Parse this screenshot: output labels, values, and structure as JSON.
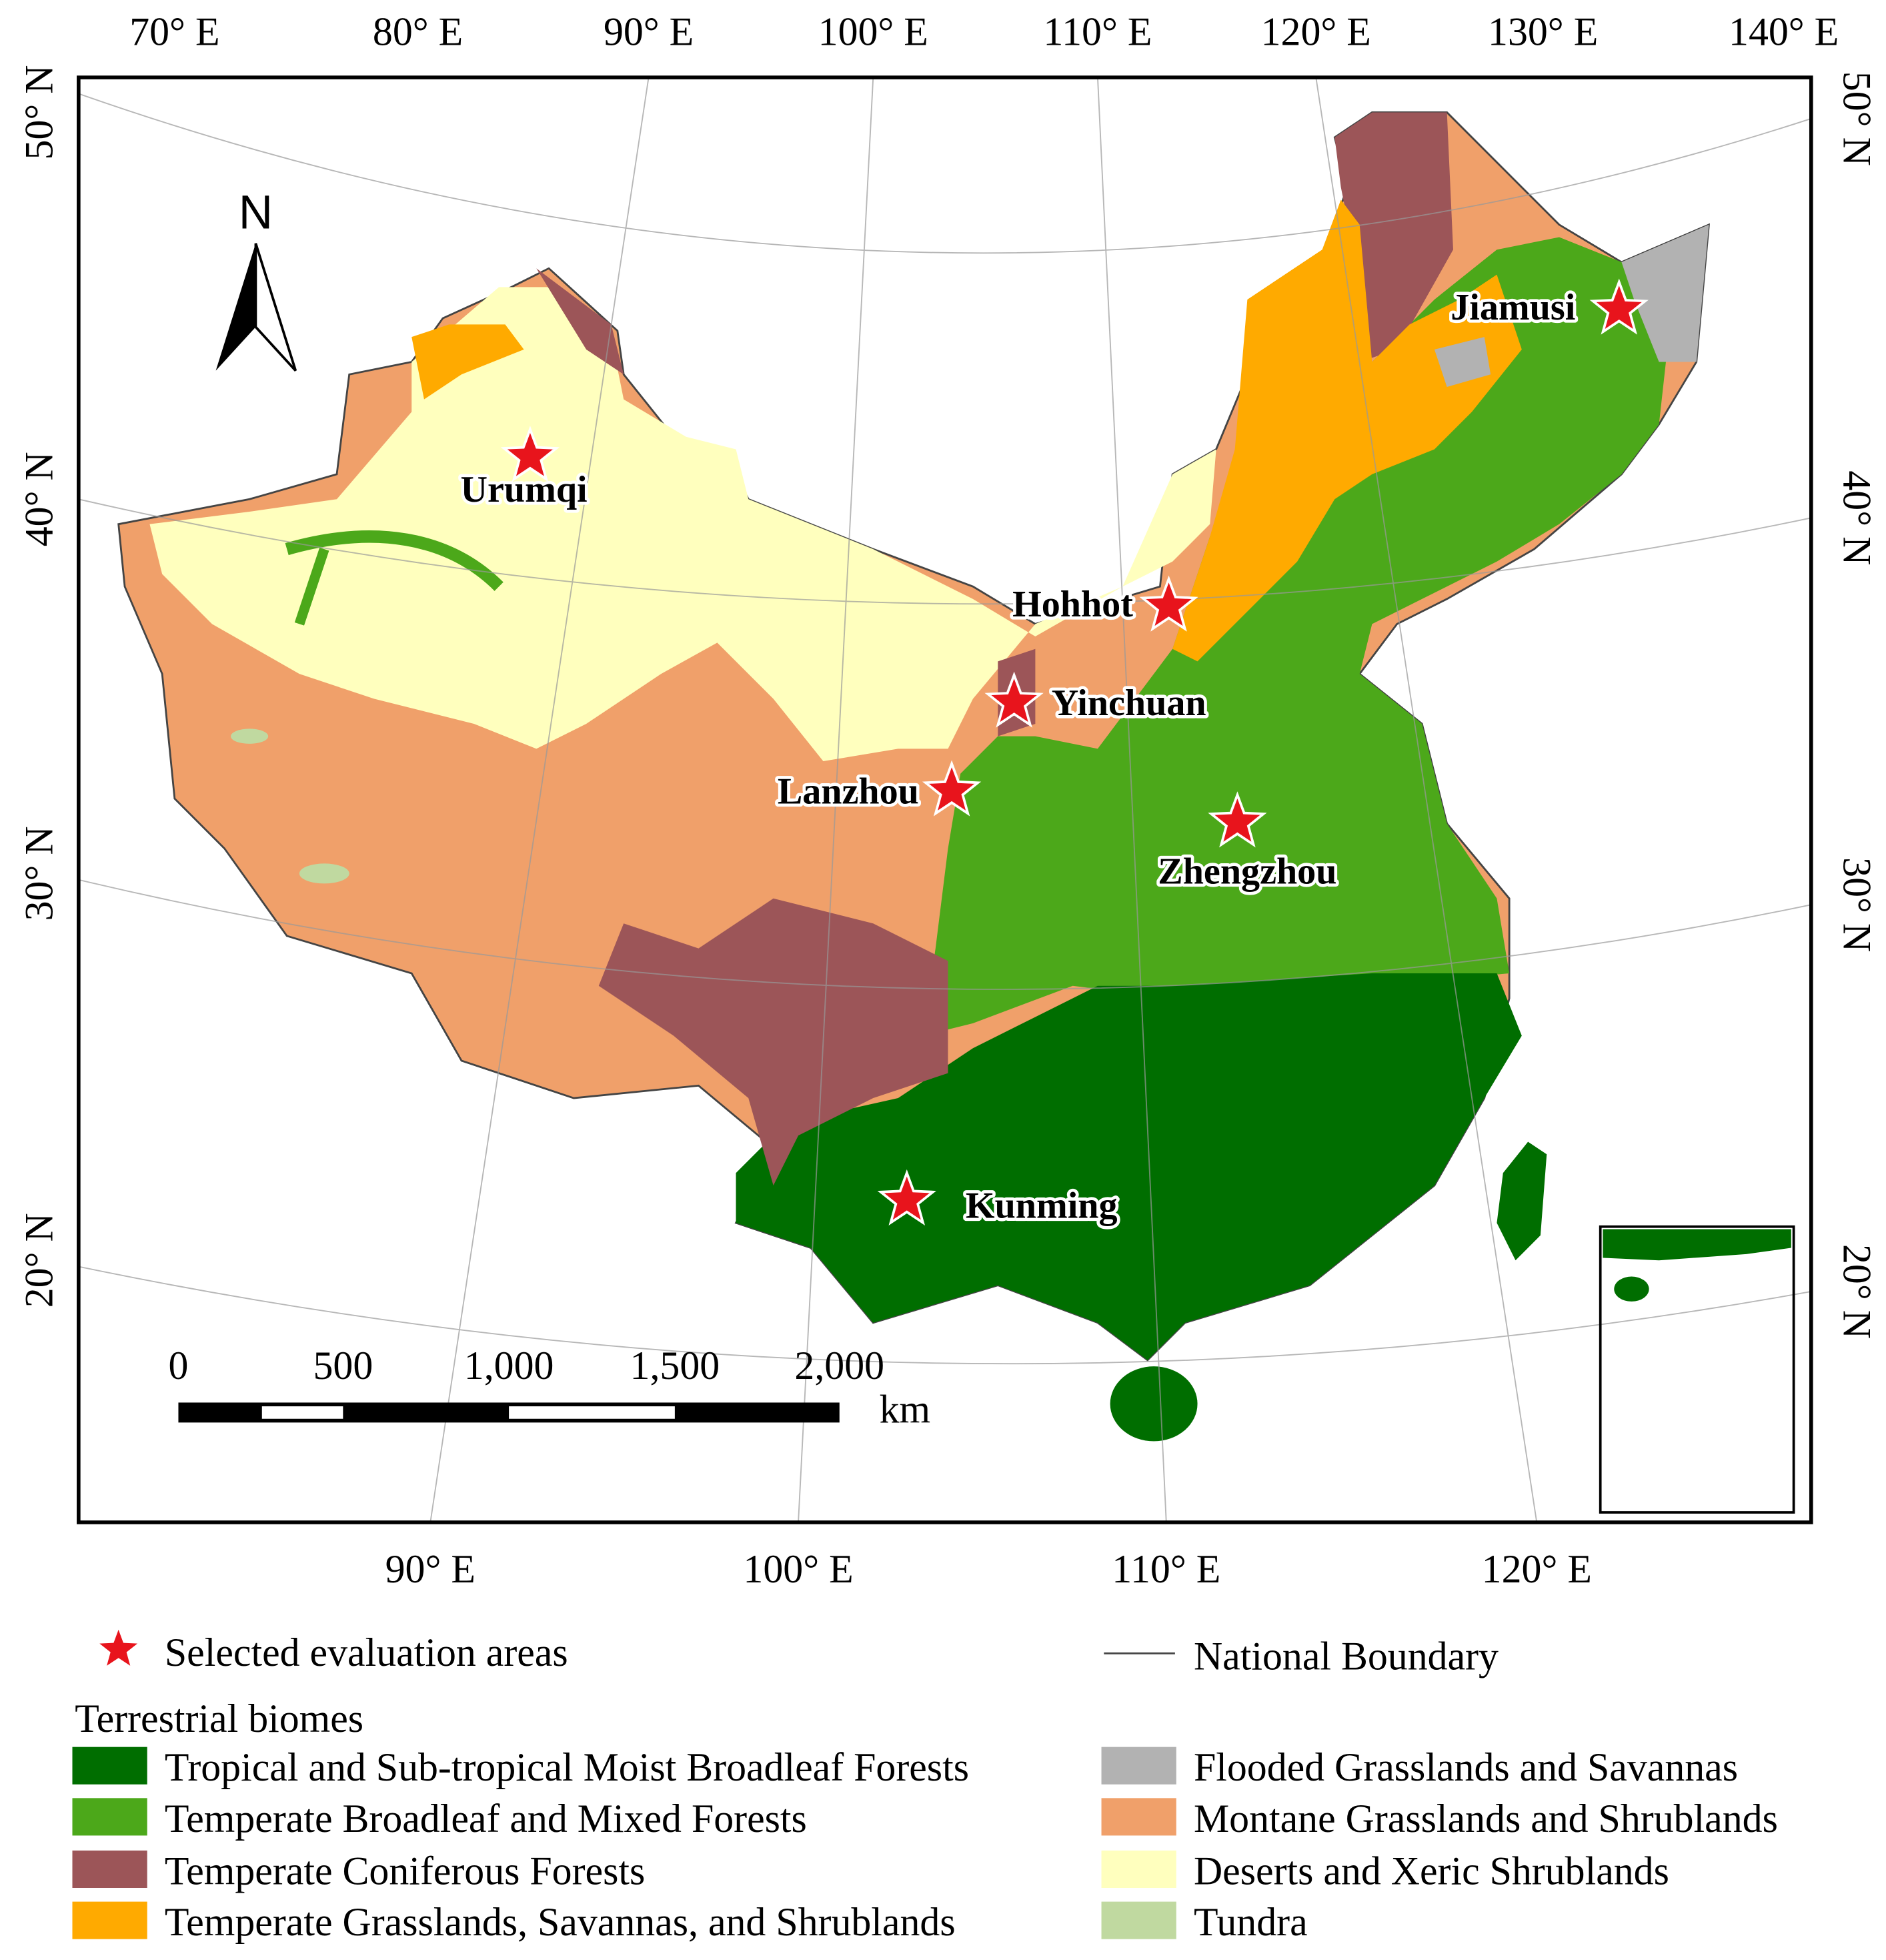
{
  "map": {
    "top_labels": [
      "70° E",
      "80° E",
      "90° E",
      "100° E",
      "110° E",
      "120° E",
      "130° E",
      "140° E"
    ],
    "left_labels": [
      "50° N",
      "40° N",
      "30° N",
      "20° N"
    ],
    "right_labels": [
      "50° N",
      "40° N",
      "30° N",
      "20° N"
    ],
    "bottom_labels": [
      "90° E",
      "100° E",
      "110° E",
      "120° E"
    ],
    "north_arrow": "N",
    "cities": [
      "Urumqi",
      "Hohhot",
      "Yinchuan",
      "Lanzhou",
      "Zhengzhou",
      "Kunming",
      "Jiamusi"
    ],
    "scale_bar": {
      "ticks": [
        "0",
        "500",
        "1,000",
        "1,500",
        "2,000"
      ],
      "unit": "km"
    }
  },
  "legend": {
    "evaluation_areas": "Selected evaluation areas",
    "boundary": "National Boundary",
    "biomes_title": "Terrestrial biomes",
    "biomes": [
      {
        "name": "Tropical and Sub-tropical Moist Broadleaf Forests",
        "color": "#006e00"
      },
      {
        "name": "Temperate Broadleaf and Mixed Forests",
        "color": "#4ca81a"
      },
      {
        "name": "Temperate Coniferous Forests",
        "color": "#9c5558"
      },
      {
        "name": "Temperate Grasslands, Savannas, and Shrublands",
        "color": "#ffaa00"
      },
      {
        "name": "Flooded Grasslands and Savannas",
        "color": "#b2b2b2"
      },
      {
        "name": "Montane Grasslands and Shrublands",
        "color": "#f0a06a"
      },
      {
        "name": "Deserts and Xeric Shrublands",
        "color": "#ffffbe"
      },
      {
        "name": "Tundra",
        "color": "#c0d9a0"
      }
    ]
  }
}
